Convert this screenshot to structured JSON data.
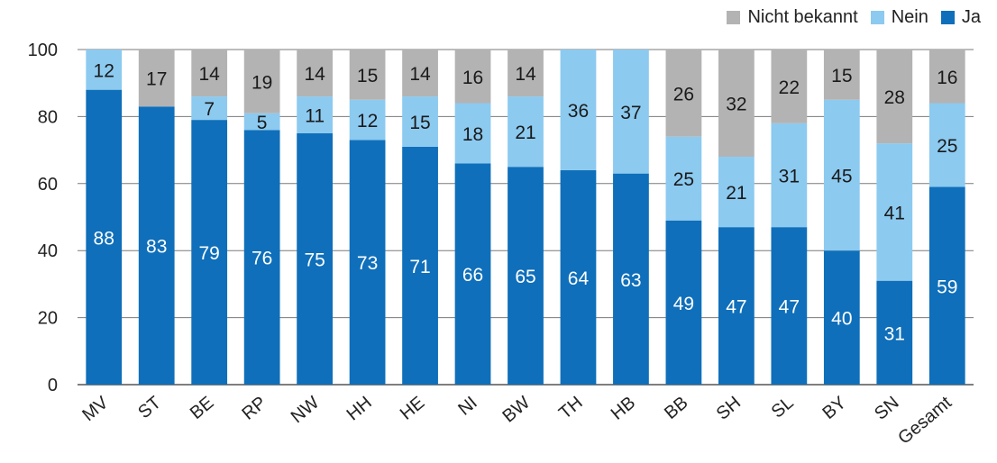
{
  "chart_data": {
    "type": "bar",
    "stacked": true,
    "categories": [
      "MV",
      "ST",
      "BE",
      "RP",
      "NW",
      "HH",
      "HE",
      "NI",
      "BW",
      "TH",
      "HB",
      "BB",
      "SH",
      "SL",
      "BY",
      "SN",
      "Gesamt"
    ],
    "series": [
      {
        "name": "Ja",
        "color": "#0f6fba",
        "values": [
          88,
          83,
          79,
          76,
          75,
          73,
          71,
          66,
          65,
          64,
          63,
          49,
          47,
          47,
          40,
          31,
          59
        ]
      },
      {
        "name": "Nein",
        "color": "#8ccaf0",
        "values": [
          12,
          0,
          7,
          5,
          11,
          12,
          15,
          18,
          21,
          36,
          37,
          25,
          21,
          31,
          45,
          41,
          25
        ]
      },
      {
        "name": "Nicht bekannt",
        "color": "#b3b3b3",
        "values": [
          0,
          17,
          14,
          19,
          14,
          15,
          14,
          16,
          14,
          0,
          0,
          26,
          32,
          22,
          15,
          28,
          16
        ]
      }
    ],
    "data_labels": {
      "Ja": [
        "88",
        "83",
        "79",
        "76",
        "75",
        "73",
        "71",
        "66",
        "65",
        "64",
        "63",
        "49",
        "47",
        "47",
        "40",
        "31",
        "59"
      ],
      "Nein": [
        "12",
        "",
        "7",
        "5",
        "11",
        "12",
        "15",
        "18",
        "21",
        "36",
        "37",
        "25",
        "21",
        "31",
        "45",
        "41",
        "25"
      ],
      "Nicht bekannt": [
        "",
        "17",
        "14",
        "19",
        "14",
        "15",
        "14",
        "16",
        "14",
        "",
        "",
        "26",
        "32",
        "22",
        "15",
        "28",
        "16"
      ]
    },
    "ylim": [
      0,
      100
    ],
    "yticks": [
      0,
      20,
      40,
      60,
      80,
      100
    ],
    "grid": true,
    "legend": {
      "position": "top-right",
      "entries": [
        {
          "label": "Nicht bekannt",
          "color": "#b3b3b3"
        },
        {
          "label": "Nein",
          "color": "#8ccaf0"
        },
        {
          "label": "Ja",
          "color": "#0f6fba"
        }
      ]
    }
  }
}
